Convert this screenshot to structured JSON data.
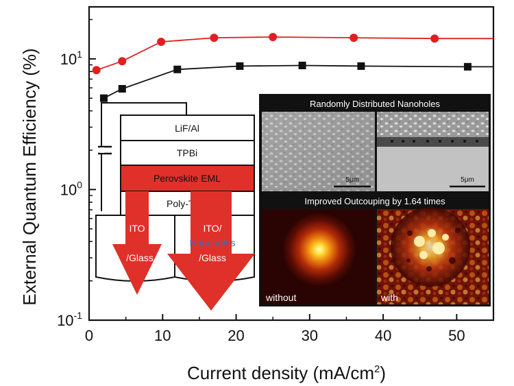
{
  "chart_data": {
    "type": "line",
    "xlabel": "Current density (mA/cm",
    "xlabel_sup": "2",
    "xlabel_close": ")",
    "ylabel": "External Quantum Efficiency (%)",
    "xlim": [
      0,
      55
    ],
    "ylim": [
      0.1,
      25
    ],
    "yscale": "log",
    "grid": false,
    "x_ticks": [
      0,
      10,
      20,
      30,
      40,
      50
    ],
    "x_tick_labels": [
      "0",
      "10",
      "20",
      "30",
      "40",
      "50"
    ],
    "y_ticks": [
      {
        "value": 0.1,
        "base": "10",
        "exp": "-1"
      },
      {
        "value": 1,
        "base": "10",
        "exp": "0"
      },
      {
        "value": 10,
        "base": "10",
        "exp": "1"
      }
    ],
    "series": [
      {
        "color": "#e02020",
        "marker": "circle",
        "x": [
          1.0,
          4.5,
          9.8,
          17.0,
          25.0,
          36.0,
          47.0,
          55.0
        ],
        "y": [
          8.2,
          9.6,
          13.5,
          14.5,
          14.7,
          14.5,
          14.3,
          14.3
        ],
        "marker_count": 7
      },
      {
        "color": "#111111",
        "marker": "square",
        "x": [
          2.0,
          4.5,
          12.0,
          20.5,
          29.0,
          37.0,
          51.5,
          55.0
        ],
        "y": [
          5.0,
          5.9,
          8.3,
          8.8,
          8.9,
          8.8,
          8.7,
          8.7
        ],
        "marker_count": 7
      }
    ]
  },
  "device": {
    "layers": [
      "LiF/Al",
      "TPBi",
      "Perovskite EML",
      "Poly-TPD"
    ],
    "left_substrate": [
      "ITO",
      "/Glass"
    ],
    "right_substrate_top": "ITO/",
    "right_substrate_mid": "Nanoholes",
    "right_substrate_bottom": "/Glass",
    "eml_color": "#e0302a",
    "arrow_color": "#e0302a",
    "nanoholes_color": "#3a6fb0"
  },
  "inset": {
    "title_top": "Randomly Distributed Nanoholes",
    "scale_left": "5μm",
    "scale_right": "5μm",
    "title_bottom": "Improved Outcouping by 1.64 times",
    "label_without": "without",
    "label_with": "with"
  }
}
